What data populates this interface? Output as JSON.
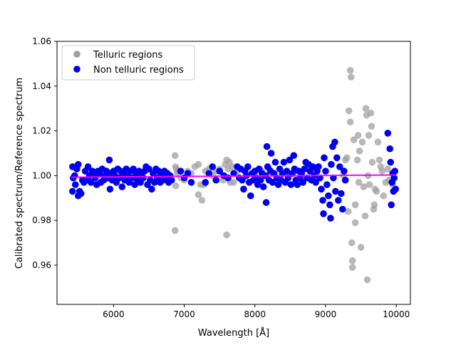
{
  "chart_data": {
    "type": "scatter",
    "xlabel": "Wavelength [Å]",
    "ylabel": "Calibrated spectrum/Reference spectrum",
    "xlim": [
      5200,
      10200
    ],
    "ylim": [
      0.9425,
      1.06
    ],
    "xticks": [
      6000,
      7000,
      8000,
      9000,
      10000
    ],
    "yticks": [
      0.96,
      0.98,
      1.0,
      1.02,
      1.04,
      1.06
    ],
    "ytick_labels": [
      "0.96",
      "0.98",
      "1.00",
      "1.02",
      "1.04",
      "1.06"
    ],
    "grid": false,
    "legend_position": "top-left",
    "series": [
      {
        "name": "Telluric regions",
        "color": "#a0a0a0",
        "points": [
          [
            6870,
            1.009
          ],
          [
            6875,
            1.004
          ],
          [
            6880,
            0.9955
          ],
          [
            6870,
            0.9755
          ],
          [
            6890,
            1.003
          ],
          [
            6900,
            1.001
          ],
          [
            6920,
            1.002
          ],
          [
            6950,
            0.999
          ],
          [
            7000,
            0.998
          ],
          [
            7050,
            1.002
          ],
          [
            7100,
            1.001
          ],
          [
            7150,
            1.004
          ],
          [
            7200,
            1.005
          ],
          [
            7200,
            0.9915
          ],
          [
            7230,
            0.996
          ],
          [
            7250,
            0.989
          ],
          [
            7280,
            0.996
          ],
          [
            7300,
            1.002
          ],
          [
            7350,
            1.003
          ],
          [
            7400,
            1.0
          ],
          [
            7450,
            1.002
          ],
          [
            7500,
            1.003
          ],
          [
            7550,
            0.998
          ],
          [
            7580,
            1.005
          ],
          [
            7600,
            1.007
          ],
          [
            7620,
            1.003
          ],
          [
            7600,
            0.9735
          ],
          [
            7640,
            1.006
          ],
          [
            7650,
            0.997
          ],
          [
            7680,
            1.004
          ],
          [
            7700,
            0.997
          ],
          [
            7750,
            1.002
          ],
          [
            8100,
            1.002
          ],
          [
            8200,
            1.003
          ],
          [
            8350,
            0.998
          ],
          [
            8450,
            1.001
          ],
          [
            9250,
            1.0
          ],
          [
            9280,
            1.007
          ],
          [
            9300,
            1.008
          ],
          [
            9320,
            0.984
          ],
          [
            9330,
            1.029
          ],
          [
            9350,
            1.024
          ],
          [
            9350,
            1.047
          ],
          [
            9360,
            1.044
          ],
          [
            9370,
            0.97
          ],
          [
            9380,
            0.962
          ],
          [
            9380,
            0.959
          ],
          [
            9400,
            1.016
          ],
          [
            9420,
            0.987
          ],
          [
            9420,
            0.979
          ],
          [
            9450,
            1.007
          ],
          [
            9460,
            1.018
          ],
          [
            9470,
            0.997
          ],
          [
            9480,
            1.011
          ],
          [
            9500,
            0.968
          ],
          [
            9520,
            1.015
          ],
          [
            9540,
            0.995
          ],
          [
            9560,
            0.982
          ],
          [
            9570,
            1.03
          ],
          [
            9580,
            1.027
          ],
          [
            9590,
            0.9535
          ],
          [
            9600,
            1.0
          ],
          [
            9610,
            1.018
          ],
          [
            9620,
            0.996
          ],
          [
            9640,
            1.028
          ],
          [
            9650,
            1.022
          ],
          [
            9660,
            1.006
          ],
          [
            9680,
            0.985
          ],
          [
            9690,
            0.987
          ],
          [
            9700,
            0.994
          ],
          [
            9720,
            0.993
          ],
          [
            9740,
            1.015
          ],
          [
            9760,
            1.007
          ],
          [
            9780,
            1.004
          ],
          [
            9800,
            1.002
          ],
          [
            9820,
            0.991
          ],
          [
            9850,
            0.997
          ],
          [
            9880,
            1.003
          ],
          [
            9900,
            0.998
          ],
          [
            9950,
            0.996
          ]
        ]
      },
      {
        "name": "Non telluric regions",
        "color": "#0000ee",
        "points": [
          [
            5420,
            1.004
          ],
          [
            5420,
            0.993
          ],
          [
            5430,
            0.999
          ],
          [
            5450,
            1.0
          ],
          [
            5460,
            0.996
          ],
          [
            5480,
            1.003
          ],
          [
            5500,
            1.005
          ],
          [
            5500,
            0.991
          ],
          [
            5520,
            0.993
          ],
          [
            5540,
            0.992
          ],
          [
            5560,
            0.998
          ],
          [
            5580,
            0.997
          ],
          [
            5600,
            1.002
          ],
          [
            5620,
            0.998
          ],
          [
            5640,
            1.004
          ],
          [
            5660,
            1.0
          ],
          [
            5680,
            0.997
          ],
          [
            5700,
            1.002
          ],
          [
            5720,
            1.001
          ],
          [
            5740,
            0.999
          ],
          [
            5760,
            0.996
          ],
          [
            5780,
            1.002
          ],
          [
            5800,
            1.001
          ],
          [
            5820,
            0.997
          ],
          [
            5840,
            1.003
          ],
          [
            5860,
            0.998
          ],
          [
            5880,
            1.0
          ],
          [
            5900,
            1.002
          ],
          [
            5920,
            0.999
          ],
          [
            5940,
            1.007
          ],
          [
            5950,
            0.994
          ],
          [
            5960,
            1.001
          ],
          [
            5980,
            0.998
          ],
          [
            6000,
            1.002
          ],
          [
            6020,
            1.0
          ],
          [
            6040,
            0.997
          ],
          [
            6060,
            1.003
          ],
          [
            6080,
            0.999
          ],
          [
            6100,
            1.002
          ],
          [
            6120,
            0.995
          ],
          [
            6140,
            1.001
          ],
          [
            6160,
            0.998
          ],
          [
            6180,
            1.003
          ],
          [
            6200,
            1.0
          ],
          [
            6220,
            0.997
          ],
          [
            6240,
            1.002
          ],
          [
            6260,
            0.999
          ],
          [
            6280,
            1.003
          ],
          [
            6300,
            0.996
          ],
          [
            6320,
            1.001
          ],
          [
            6340,
            0.998
          ],
          [
            6360,
            1.002
          ],
          [
            6380,
            0.997
          ],
          [
            6400,
            1.0
          ],
          [
            6420,
            0.999
          ],
          [
            6440,
            1.002
          ],
          [
            6460,
            1.004
          ],
          [
            6480,
            0.996
          ],
          [
            6500,
            1.003
          ],
          [
            6520,
            0.998
          ],
          [
            6540,
            0.994
          ],
          [
            6560,
            1.001
          ],
          [
            6580,
            0.997
          ],
          [
            6600,
            1.003
          ],
          [
            6620,
            0.999
          ],
          [
            6640,
            1.002
          ],
          [
            6660,
            0.997
          ],
          [
            6680,
            1.001
          ],
          [
            6700,
            0.998
          ],
          [
            6720,
            1.002
          ],
          [
            6740,
            0.999
          ],
          [
            6760,
            1.001
          ],
          [
            6780,
            0.997
          ],
          [
            6800,
            1.0
          ],
          [
            6820,
            0.998
          ],
          [
            6950,
            1.002
          ],
          [
            7000,
            0.999
          ],
          [
            7050,
            1.001
          ],
          [
            7100,
            0.997
          ],
          [
            7300,
            0.997
          ],
          [
            7350,
            1.001
          ],
          [
            7400,
            1.004
          ],
          [
            7450,
            0.998
          ],
          [
            7500,
            1.002
          ],
          [
            7560,
            1.0
          ],
          [
            7620,
            0.999
          ],
          [
            7700,
            1.001
          ],
          [
            7750,
            1.004
          ],
          [
            7780,
            0.999
          ],
          [
            7800,
            1.003
          ],
          [
            7820,
            0.998
          ],
          [
            7840,
            0.994
          ],
          [
            7860,
            1.002
          ],
          [
            7880,
            1.0
          ],
          [
            7900,
            1.004
          ],
          [
            7920,
            0.997
          ],
          [
            7940,
            0.991
          ],
          [
            7960,
            1.001
          ],
          [
            7980,
            0.998
          ],
          [
            8000,
            1.002
          ],
          [
            8020,
            0.999
          ],
          [
            8040,
            0.996
          ],
          [
            8060,
            1.003
          ],
          [
            8080,
            0.998
          ],
          [
            8100,
            1.001
          ],
          [
            8120,
            0.995
          ],
          [
            8150,
            1.0
          ],
          [
            8160,
            0.988
          ],
          [
            8170,
            1.013
          ],
          [
            8180,
            1.004
          ],
          [
            8200,
            0.998
          ],
          [
            8220,
            1.002
          ],
          [
            8230,
            1.01
          ],
          [
            8250,
            0.997
          ],
          [
            8270,
            1.001
          ],
          [
            8290,
            1.006
          ],
          [
            8310,
            0.999
          ],
          [
            8330,
            0.996
          ],
          [
            8350,
            1.003
          ],
          [
            8370,
            0.998
          ],
          [
            8390,
            1.001
          ],
          [
            8410,
            1.006
          ],
          [
            8430,
            0.997
          ],
          [
            8450,
            1.002
          ],
          [
            8470,
            0.999
          ],
          [
            8490,
            1.007
          ],
          [
            8510,
            0.996
          ],
          [
            8530,
            1.001
          ],
          [
            8550,
            1.009
          ],
          [
            8560,
            1.003
          ],
          [
            8580,
            0.998
          ],
          [
            8600,
            0.996
          ],
          [
            8620,
            1.002
          ],
          [
            8640,
            0.999
          ],
          [
            8660,
            1.001
          ],
          [
            8680,
            0.997
          ],
          [
            8700,
            1.003
          ],
          [
            8720,
            1.006
          ],
          [
            8740,
            0.999
          ],
          [
            8760,
            1.005
          ],
          [
            8780,
            1.002
          ],
          [
            8800,
            0.998
          ],
          [
            8820,
            1.004
          ],
          [
            8840,
            1.0
          ],
          [
            8860,
            0.997
          ],
          [
            8880,
            1.002
          ],
          [
            8900,
            1.004
          ],
          [
            8920,
            0.999
          ],
          [
            8940,
            0.994
          ],
          [
            8960,
            0.989
          ],
          [
            8970,
            0.983
          ],
          [
            8980,
            1.008
          ],
          [
            9000,
            1.002
          ],
          [
            9020,
            0.996
          ],
          [
            9040,
            0.991
          ],
          [
            9060,
            0.987
          ],
          [
            9070,
            0.981
          ],
          [
            9080,
            1.005
          ],
          [
            9100,
            1.013
          ],
          [
            9110,
            0.999
          ],
          [
            9130,
            1.015
          ],
          [
            9140,
            0.993
          ],
          [
            9160,
            1.008
          ],
          [
            9180,
            0.989
          ],
          [
            9200,
            1.004
          ],
          [
            9220,
            0.992
          ],
          [
            9240,
            0.985
          ],
          [
            9260,
            1.002
          ],
          [
            9280,
            0.998
          ],
          [
            9880,
            1.019
          ],
          [
            9910,
            1.012
          ],
          [
            9920,
            1.006
          ],
          [
            9930,
            0.987
          ],
          [
            9940,
            0.997
          ],
          [
            9950,
            1.001
          ],
          [
            9960,
            0.993
          ],
          [
            9970,
            0.999
          ],
          [
            9980,
            1.002
          ],
          [
            9990,
            0.994
          ]
        ]
      }
    ],
    "fit_line": {
      "color": "#ff00ff",
      "points": [
        [
          5400,
          0.9993
        ],
        [
          10000,
          1.0003
        ]
      ]
    }
  }
}
